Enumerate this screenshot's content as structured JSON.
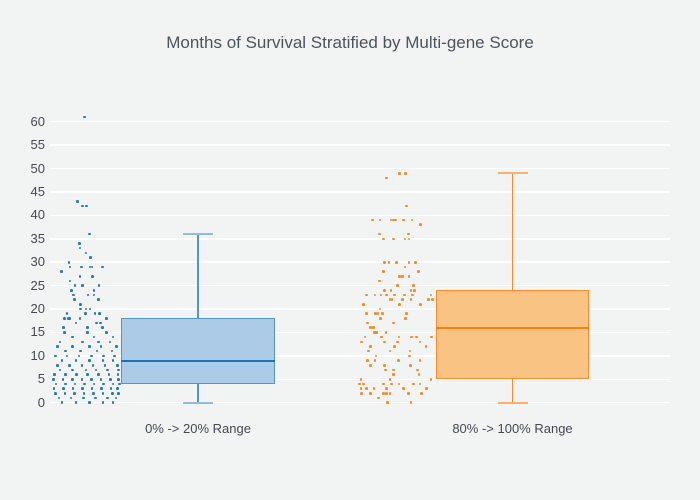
{
  "title": "Months of Survival Stratified by Multi-gene Score",
  "colors": {
    "background": "#f2f3f3",
    "gridline": "#ffffff",
    "title_text": "#4c545c",
    "tick_text": "#444a50"
  },
  "chart_data": {
    "type": "box",
    "title": "Months of Survival Stratified by Multi-gene Score",
    "xlabel": "",
    "ylabel": "",
    "ylim": [
      -3.05,
      67.2
    ],
    "yticks": [
      0,
      5,
      10,
      15,
      20,
      25,
      30,
      35,
      40,
      45,
      50,
      55,
      60
    ],
    "grid": true,
    "legend": "none",
    "style": "box plot with jittered raw data points to the left of each box",
    "groups": [
      {
        "label": "0% -> 20% Range",
        "color_line": "#5795c4",
        "color_fill": "#abcbe6",
        "color_median": "#2273b1",
        "color_points": "#2a79b2",
        "color_cap": "#92bcd9",
        "box": {
          "min": 0,
          "q1": 4,
          "median": 9,
          "q3": 18,
          "max": 36
        },
        "points": [
          [
            61,
            0.475
          ],
          [
            43,
            0.372
          ],
          [
            42,
            0.446
          ],
          [
            42,
            0.51
          ],
          [
            36,
            0.554
          ],
          [
            34,
            0.401
          ],
          [
            33,
            0.412
          ],
          [
            32,
            0.5
          ],
          [
            31,
            0.563
          ],
          [
            30,
            0.25
          ],
          [
            29,
            0.265
          ],
          [
            29,
            0.437
          ],
          [
            29,
            0.559
          ],
          [
            29,
            0.588
          ],
          [
            29,
            0.74
          ],
          [
            28,
            0.143
          ],
          [
            27,
            0.412
          ],
          [
            27,
            0.599
          ],
          [
            26,
            0.265
          ],
          [
            25,
            0.34
          ],
          [
            25,
            0.45
          ],
          [
            25,
            0.69
          ],
          [
            24,
            0.29
          ],
          [
            24,
            0.62
          ],
          [
            23,
            0.32
          ],
          [
            23,
            0.53
          ],
          [
            23,
            0.62
          ],
          [
            22,
            0.33
          ],
          [
            22,
            0.68
          ],
          [
            21,
            0.42
          ],
          [
            20,
            0.42
          ],
          [
            20,
            0.5
          ],
          [
            20,
            0.56
          ],
          [
            19,
            0.22
          ],
          [
            19,
            0.49
          ],
          [
            19,
            0.63
          ],
          [
            19,
            0.7
          ],
          [
            18,
            0.18
          ],
          [
            18,
            0.24
          ],
          [
            18,
            0.26
          ],
          [
            18,
            0.41
          ],
          [
            18,
            0.8
          ],
          [
            17,
            0.35
          ],
          [
            17,
            0.657
          ],
          [
            17,
            0.716
          ],
          [
            16,
            0.17
          ],
          [
            16,
            0.52
          ],
          [
            16,
            0.74
          ],
          [
            15,
            0.18
          ],
          [
            15,
            0.52
          ],
          [
            15,
            0.8
          ],
          [
            14,
            0.3
          ],
          [
            14,
            0.62
          ],
          [
            14,
            0.9
          ],
          [
            13,
            0.12
          ],
          [
            13,
            0.45
          ],
          [
            13,
            0.68
          ],
          [
            13,
            0.85
          ],
          [
            12,
            0.08
          ],
          [
            12,
            0.3
          ],
          [
            12,
            0.55
          ],
          [
            12,
            0.72
          ],
          [
            12,
            0.95
          ],
          [
            11,
            0.2
          ],
          [
            11,
            0.42
          ],
          [
            11,
            0.66
          ],
          [
            11,
            0.88
          ],
          [
            10,
            0.05
          ],
          [
            10,
            0.22
          ],
          [
            10,
            0.4
          ],
          [
            10,
            0.58
          ],
          [
            10,
            0.76
          ],
          [
            10,
            0.92
          ],
          [
            9,
            0.15
          ],
          [
            9,
            0.35
          ],
          [
            9,
            0.55
          ],
          [
            9,
            0.75
          ],
          [
            9,
            0.9
          ],
          [
            8,
            0.08
          ],
          [
            8,
            0.26
          ],
          [
            8,
            0.44
          ],
          [
            8,
            0.6
          ],
          [
            8,
            0.78
          ],
          [
            8,
            0.96
          ],
          [
            7,
            0.12
          ],
          [
            7,
            0.3
          ],
          [
            7,
            0.5
          ],
          [
            7,
            0.65
          ],
          [
            7,
            0.82
          ],
          [
            7,
            0.98
          ],
          [
            6,
            0.04
          ],
          [
            6,
            0.2
          ],
          [
            6,
            0.36
          ],
          [
            6,
            0.52
          ],
          [
            6,
            0.68
          ],
          [
            6,
            0.84
          ],
          [
            6,
            0.97
          ],
          [
            5,
            0.02
          ],
          [
            5,
            0.16
          ],
          [
            5,
            0.3
          ],
          [
            5,
            0.44
          ],
          [
            5,
            0.58
          ],
          [
            5,
            0.72
          ],
          [
            5,
            0.86
          ],
          [
            5,
            0.98
          ],
          [
            4,
            0.06
          ],
          [
            4,
            0.2
          ],
          [
            4,
            0.34
          ],
          [
            4,
            0.48
          ],
          [
            4,
            0.62
          ],
          [
            4,
            0.76
          ],
          [
            4,
            0.9
          ],
          [
            4,
            0.99
          ],
          [
            3,
            0.03
          ],
          [
            3,
            0.17
          ],
          [
            3,
            0.31
          ],
          [
            3,
            0.45
          ],
          [
            3,
            0.59
          ],
          [
            3,
            0.73
          ],
          [
            3,
            0.87
          ],
          [
            3,
            0.96
          ],
          [
            2,
            0.05
          ],
          [
            2,
            0.19
          ],
          [
            2,
            0.33
          ],
          [
            2,
            0.47
          ],
          [
            2,
            0.61
          ],
          [
            2,
            0.75
          ],
          [
            2,
            0.89
          ],
          [
            2,
            0.98
          ],
          [
            1,
            0.1
          ],
          [
            1,
            0.28
          ],
          [
            1,
            0.46
          ],
          [
            1,
            0.64
          ],
          [
            1,
            0.82
          ],
          [
            1,
            0.94
          ],
          [
            0,
            0.15
          ],
          [
            0,
            0.35
          ],
          [
            0,
            0.55
          ],
          [
            0,
            0.75
          ],
          [
            0,
            0.9
          ]
        ]
      },
      {
        "label": "80% -> 100% Range",
        "color_line": "#fb8b2f",
        "color_fill": "#f9c384",
        "color_median": "#f8800e",
        "color_points": "#f78a28",
        "color_cap": "#fbb169",
        "box": {
          "min": 0,
          "q1": 5,
          "median": 16,
          "q3": 24,
          "max": 49
        },
        "points": [
          [
            49,
            0.557
          ],
          [
            49,
            0.641
          ],
          [
            48,
            0.39
          ],
          [
            42,
            0.654
          ],
          [
            39,
            0.201
          ],
          [
            39,
            0.303
          ],
          [
            39,
            0.447
          ],
          [
            39,
            0.478
          ],
          [
            39,
            0.509
          ],
          [
            39,
            0.609
          ],
          [
            39,
            0.724
          ],
          [
            38,
            0.833
          ],
          [
            36,
            0.293
          ],
          [
            36,
            0.675
          ],
          [
            35,
            0.351
          ],
          [
            35,
            0.478
          ],
          [
            35,
            0.632
          ],
          [
            35,
            0.684
          ],
          [
            30,
            0.359
          ],
          [
            30,
            0.421
          ],
          [
            30,
            0.522
          ],
          [
            30,
            0.684
          ],
          [
            30,
            0.767
          ],
          [
            29,
            0.632
          ],
          [
            28,
            0.346
          ],
          [
            28,
            0.807
          ],
          [
            27,
            0.557
          ],
          [
            27,
            0.596
          ],
          [
            27,
            0.684
          ],
          [
            26,
            0.293
          ],
          [
            25,
            0.535
          ],
          [
            25,
            0.741
          ],
          [
            24,
            0.359
          ],
          [
            24,
            0.447
          ],
          [
            24,
            0.711
          ],
          [
            24,
            0.754
          ],
          [
            23,
            0.122
          ],
          [
            23,
            0.237
          ],
          [
            23,
            0.316
          ],
          [
            23,
            0.391
          ],
          [
            23,
            0.491
          ],
          [
            23,
            0.622
          ],
          [
            23,
            0.728
          ],
          [
            23,
            0.974
          ],
          [
            22,
            0.434
          ],
          [
            22,
            0.461
          ],
          [
            22,
            0.601
          ],
          [
            22,
            0.711
          ],
          [
            22,
            0.938
          ],
          [
            22,
            0.991
          ],
          [
            21,
            0.083
          ],
          [
            21,
            0.557
          ],
          [
            21,
            0.838
          ],
          [
            20,
            0.3
          ],
          [
            19,
            0.128
          ],
          [
            19,
            0.246
          ],
          [
            19,
            0.276
          ],
          [
            19,
            0.333
          ],
          [
            19,
            0.654
          ],
          [
            18,
            0.312
          ],
          [
            18,
            0.641
          ],
          [
            17,
            0.136
          ],
          [
            17,
            0.478
          ],
          [
            16,
            0.18
          ],
          [
            16,
            0.214
          ],
          [
            15,
            0.228
          ],
          [
            15,
            0.259
          ],
          [
            15,
            0.382
          ],
          [
            14,
            0.105
          ],
          [
            14,
            0.325
          ],
          [
            14,
            0.553
          ],
          [
            14,
            0.72
          ],
          [
            14,
            0.785
          ],
          [
            14,
            0.983
          ],
          [
            13,
            0.062
          ],
          [
            13,
            0.359
          ],
          [
            13,
            0.535
          ],
          [
            13,
            0.829
          ],
          [
            12,
            0.18
          ],
          [
            12,
            0.491
          ],
          [
            12,
            0.908
          ],
          [
            11,
            0.149
          ],
          [
            11,
            0.434
          ],
          [
            11,
            0.697
          ],
          [
            10,
            0.25
          ],
          [
            10,
            0.688
          ],
          [
            9,
            0.136
          ],
          [
            9,
            0.237
          ],
          [
            9,
            0.543
          ],
          [
            9,
            0.829
          ],
          [
            8,
            0.18
          ],
          [
            8,
            0.359
          ],
          [
            8,
            0.707
          ],
          [
            7,
            0.378
          ],
          [
            7,
            0.478
          ],
          [
            7,
            0.794
          ],
          [
            6,
            0.478
          ],
          [
            6,
            0.816
          ],
          [
            5,
            0.053
          ],
          [
            5,
            0.434
          ],
          [
            5,
            0.974
          ],
          [
            4,
            0.03
          ],
          [
            4,
            0.083
          ],
          [
            4,
            0.346
          ],
          [
            4,
            0.457
          ],
          [
            4,
            0.553
          ],
          [
            4,
            0.741
          ],
          [
            4,
            0.829
          ],
          [
            3,
            0.053
          ],
          [
            3,
            0.128
          ],
          [
            3,
            0.224
          ],
          [
            3,
            0.391
          ],
          [
            3,
            0.609
          ],
          [
            3,
            0.917
          ],
          [
            2,
            0.062
          ],
          [
            2,
            0.18
          ],
          [
            2,
            0.346
          ],
          [
            2,
            0.391
          ],
          [
            2,
            0.434
          ],
          [
            2,
            0.675
          ],
          [
            2,
            0.851
          ],
          [
            1,
            0.28
          ],
          [
            0,
            0.4
          ],
          [
            0,
            0.711
          ]
        ]
      }
    ]
  }
}
